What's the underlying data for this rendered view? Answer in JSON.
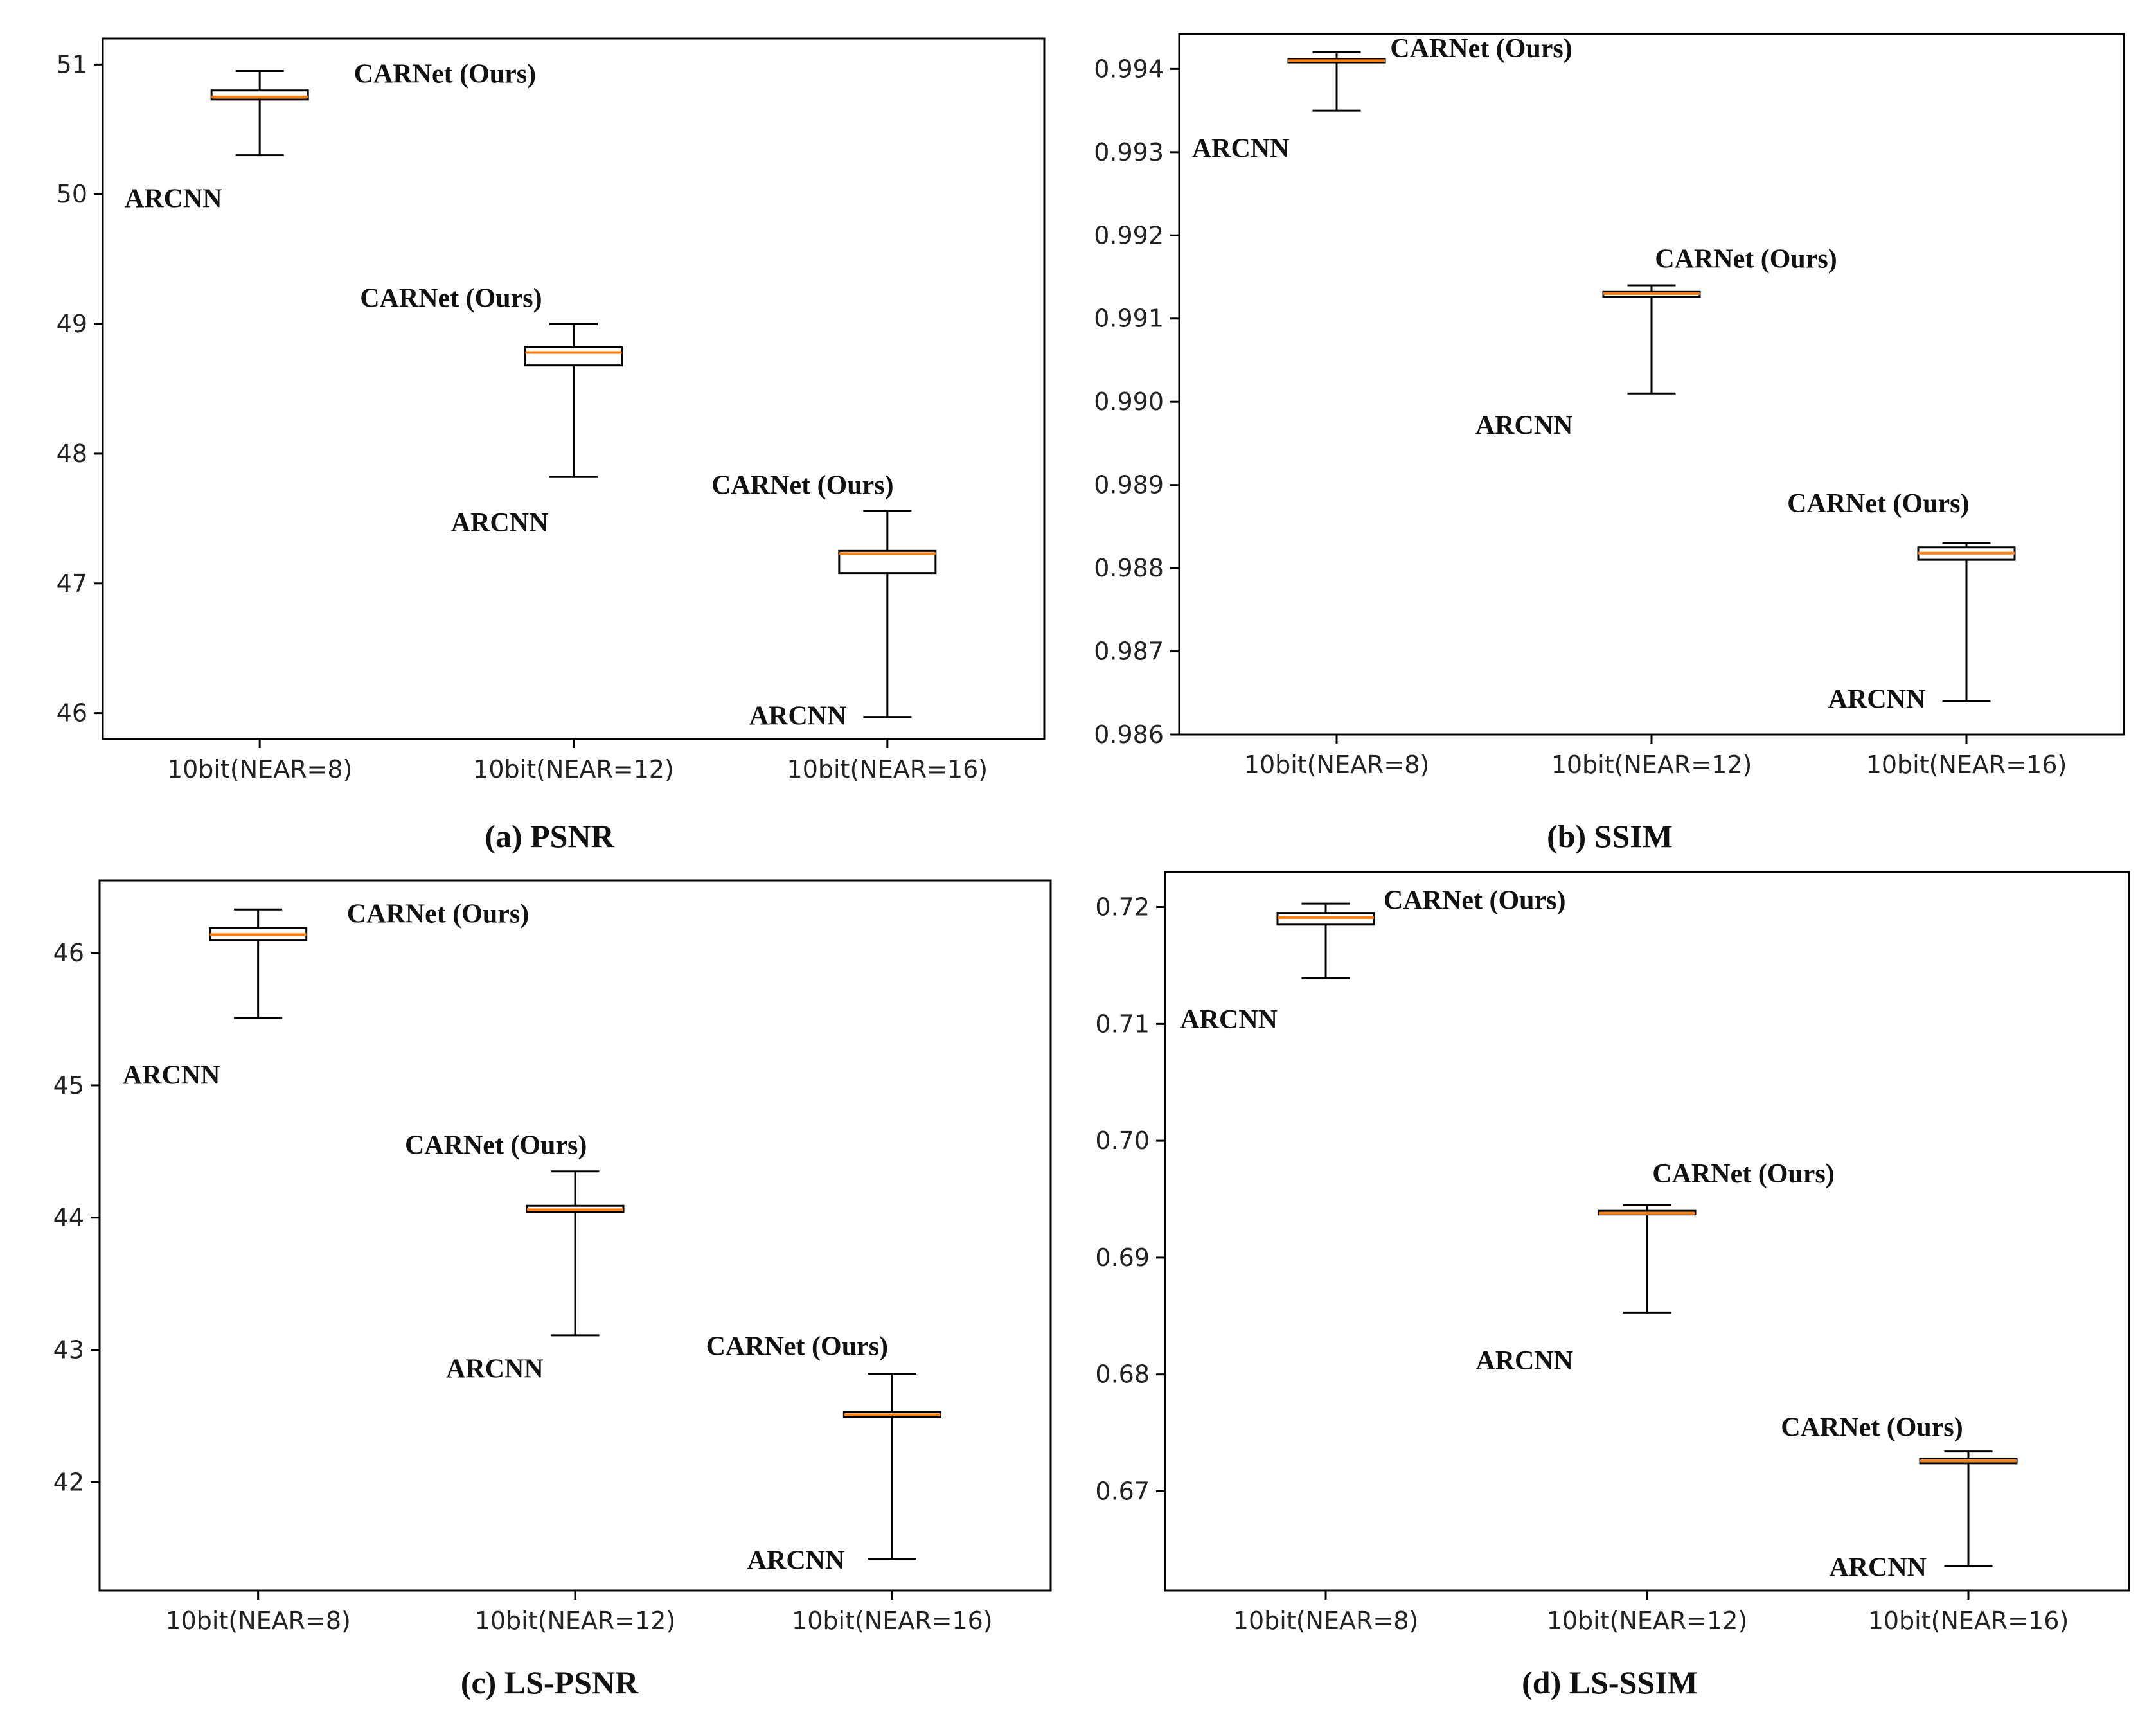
{
  "figure": {
    "panels": [
      "a",
      "b",
      "c",
      "d"
    ]
  },
  "chart_data": [
    {
      "id": "a",
      "type": "box",
      "caption": "(a) PSNR",
      "categories": [
        "10bit(NEAR=8)",
        "10bit(NEAR=12)",
        "10bit(NEAR=16)"
      ],
      "ylim": [
        45.8,
        51.2
      ],
      "yticks": [
        46,
        47,
        48,
        49,
        50,
        51
      ],
      "tick_decimals": 0,
      "boxes": [
        {
          "whisker_low": 50.3,
          "q1": 50.73,
          "median": 50.75,
          "q3": 50.8,
          "whisker_high": 50.95
        },
        {
          "whisker_low": 47.82,
          "q1": 48.68,
          "median": 48.78,
          "q3": 48.82,
          "whisker_high": 49.0
        },
        {
          "whisker_low": 45.97,
          "q1": 47.08,
          "median": 47.23,
          "q3": 47.25,
          "whisker_high": 47.56
        }
      ],
      "annotations": [
        {
          "text": "CARNet (Ours)",
          "category": 0,
          "value": 50.93,
          "dx": 0.3,
          "anchor": "start"
        },
        {
          "text": "ARCNN",
          "category": 0,
          "value": 49.97,
          "dx": -0.12,
          "anchor": "end"
        },
        {
          "text": "CARNet (Ours)",
          "category": 1,
          "value": 49.2,
          "dx": -0.1,
          "anchor": "end"
        },
        {
          "text": "ARCNN",
          "category": 1,
          "value": 47.47,
          "dx": -0.08,
          "anchor": "end"
        },
        {
          "text": "CARNet (Ours)",
          "category": 2,
          "value": 47.76,
          "dx": 0.02,
          "anchor": "end"
        },
        {
          "text": "ARCNN",
          "category": 2,
          "value": 45.98,
          "dx": -0.13,
          "anchor": "end"
        }
      ]
    },
    {
      "id": "b",
      "type": "box",
      "caption": "(b) SSIM",
      "categories": [
        "10bit(NEAR=8)",
        "10bit(NEAR=12)",
        "10bit(NEAR=16)"
      ],
      "ylim": [
        0.986,
        0.99442
      ],
      "yticks": [
        0.986,
        0.987,
        0.988,
        0.989,
        0.99,
        0.991,
        0.992,
        0.993,
        0.994
      ],
      "tick_decimals": 3,
      "boxes": [
        {
          "whisker_low": 0.9935,
          "q1": 0.99408,
          "median": 0.9941,
          "q3": 0.99412,
          "whisker_high": 0.9942
        },
        {
          "whisker_low": 0.9901,
          "q1": 0.99126,
          "median": 0.9913,
          "q3": 0.99132,
          "whisker_high": 0.9914
        },
        {
          "whisker_low": 0.9864,
          "q1": 0.9881,
          "median": 0.98818,
          "q3": 0.98825,
          "whisker_high": 0.9883
        }
      ],
      "annotations": [
        {
          "text": "CARNet (Ours)",
          "category": 0,
          "value": 0.99425,
          "dx": 0.17,
          "anchor": "start"
        },
        {
          "text": "ARCNN",
          "category": 0,
          "value": 0.99305,
          "dx": -0.15,
          "anchor": "end"
        },
        {
          "text": "CARNet (Ours)",
          "category": 1,
          "value": 0.99172,
          "dx": 0.3,
          "anchor": "middle"
        },
        {
          "text": "ARCNN",
          "category": 1,
          "value": 0.98972,
          "dx": -0.25,
          "anchor": "end"
        },
        {
          "text": "CARNet (Ours)",
          "category": 2,
          "value": 0.98878,
          "dx": -0.28,
          "anchor": "middle"
        },
        {
          "text": "ARCNN",
          "category": 2,
          "value": 0.98643,
          "dx": -0.13,
          "anchor": "end"
        }
      ]
    },
    {
      "id": "c",
      "type": "box",
      "caption": "(c) LS-PSNR",
      "categories": [
        "10bit(NEAR=8)",
        "10bit(NEAR=12)",
        "10bit(NEAR=16)"
      ],
      "ylim": [
        41.18,
        46.55
      ],
      "yticks": [
        42,
        43,
        44,
        45,
        46
      ],
      "tick_decimals": 0,
      "boxes": [
        {
          "whisker_low": 45.51,
          "q1": 46.1,
          "median": 46.14,
          "q3": 46.19,
          "whisker_high": 46.33
        },
        {
          "whisker_low": 43.11,
          "q1": 44.04,
          "median": 44.06,
          "q3": 44.09,
          "whisker_high": 44.35
        },
        {
          "whisker_low": 41.42,
          "q1": 42.49,
          "median": 42.51,
          "q3": 42.53,
          "whisker_high": 42.82
        }
      ],
      "annotations": [
        {
          "text": "CARNet (Ours)",
          "category": 0,
          "value": 46.3,
          "dx": 0.28,
          "anchor": "start"
        },
        {
          "text": "ARCNN",
          "category": 0,
          "value": 45.08,
          "dx": -0.12,
          "anchor": "end"
        },
        {
          "text": "CARNet (Ours)",
          "category": 1,
          "value": 44.55,
          "dx": -0.25,
          "anchor": "middle"
        },
        {
          "text": "ARCNN",
          "category": 1,
          "value": 42.86,
          "dx": -0.1,
          "anchor": "end"
        },
        {
          "text": "CARNet (Ours)",
          "category": 2,
          "value": 43.03,
          "dx": -0.3,
          "anchor": "middle"
        },
        {
          "text": "ARCNN",
          "category": 2,
          "value": 41.41,
          "dx": -0.15,
          "anchor": "end"
        }
      ]
    },
    {
      "id": "d",
      "type": "box",
      "caption": "(d) LS-SSIM",
      "categories": [
        "10bit(NEAR=8)",
        "10bit(NEAR=12)",
        "10bit(NEAR=16)"
      ],
      "ylim": [
        0.6615,
        0.723
      ],
      "yticks": [
        0.67,
        0.68,
        0.69,
        0.7,
        0.71,
        0.72
      ],
      "tick_decimals": 2,
      "boxes": [
        {
          "whisker_low": 0.7139,
          "q1": 0.7185,
          "median": 0.7191,
          "q3": 0.7195,
          "whisker_high": 0.7203
        },
        {
          "whisker_low": 0.6853,
          "q1": 0.6937,
          "median": 0.6938,
          "q3": 0.694,
          "whisker_high": 0.6945
        },
        {
          "whisker_low": 0.6636,
          "q1": 0.6724,
          "median": 0.6726,
          "q3": 0.6728,
          "whisker_high": 0.6734
        }
      ],
      "annotations": [
        {
          "text": "CARNet (Ours)",
          "category": 0,
          "value": 0.7206,
          "dx": 0.18,
          "anchor": "start"
        },
        {
          "text": "ARCNN",
          "category": 0,
          "value": 0.7104,
          "dx": -0.15,
          "anchor": "end"
        },
        {
          "text": "CARNet (Ours)",
          "category": 1,
          "value": 0.6972,
          "dx": 0.3,
          "anchor": "middle"
        },
        {
          "text": "ARCNN",
          "category": 1,
          "value": 0.6812,
          "dx": -0.23,
          "anchor": "end"
        },
        {
          "text": "CARNet (Ours)",
          "category": 2,
          "value": 0.6755,
          "dx": -0.3,
          "anchor": "middle"
        },
        {
          "text": "ARCNN",
          "category": 2,
          "value": 0.6635,
          "dx": -0.13,
          "anchor": "end"
        }
      ]
    }
  ]
}
